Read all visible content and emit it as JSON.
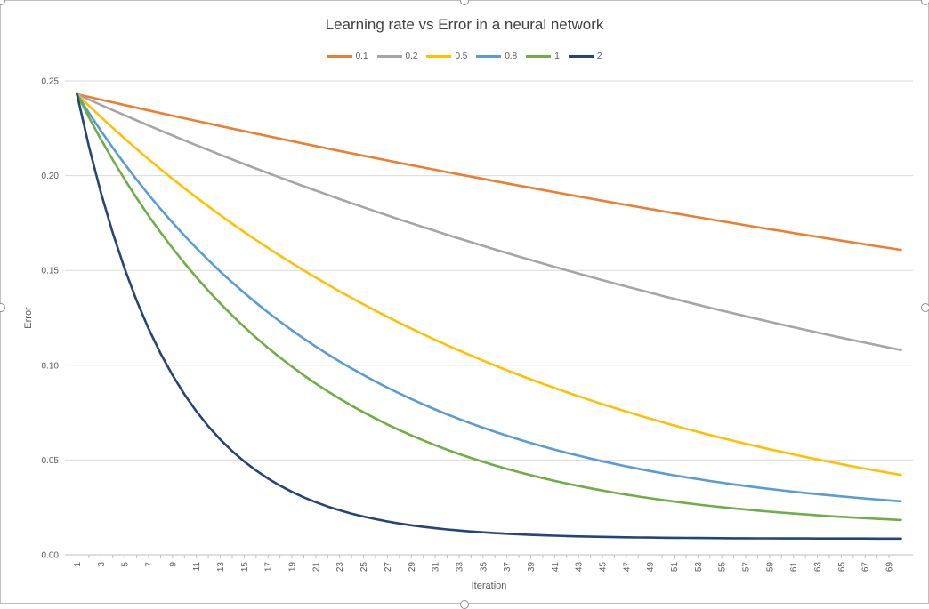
{
  "chart_data": {
    "type": "line",
    "title": "Learning rate vs Error in a neural network",
    "xlabel": "Iteration",
    "ylabel": "Error",
    "x": [
      1,
      3,
      5,
      7,
      9,
      11,
      13,
      15,
      17,
      19,
      21,
      23,
      25,
      27,
      29,
      31,
      33,
      35,
      37,
      39,
      41,
      43,
      45,
      47,
      49,
      51,
      53,
      55,
      57,
      59,
      61,
      63,
      65,
      67,
      69
    ],
    "xlim": [
      1,
      70
    ],
    "ylim": [
      0,
      0.25
    ],
    "yticks": [
      "0.00",
      "0.05",
      "0.10",
      "0.15",
      "0.20",
      "0.25"
    ],
    "ytick_values": [
      0,
      0.05,
      0.1,
      0.15,
      0.2,
      0.25
    ],
    "xtick_labels": [
      "1",
      "3",
      "5",
      "7",
      "9",
      "11",
      "13",
      "15",
      "17",
      "19",
      "21",
      "23",
      "25",
      "27",
      "29",
      "31",
      "33",
      "35",
      "37",
      "39",
      "41",
      "43",
      "45",
      "47",
      "49",
      "51",
      "53",
      "55",
      "57",
      "59",
      "61",
      "63",
      "65",
      "67",
      "69"
    ],
    "grid": "horizontal",
    "legend_position": "top",
    "series": [
      {
        "name": "0.1",
        "color": "#ED7D31",
        "start": 0.243,
        "end": 0.161,
        "rate": 0.00598,
        "floor": 0.0
      },
      {
        "name": "0.2",
        "color": "#A5A5A5",
        "start": 0.243,
        "end": 0.108,
        "rate": 0.01175,
        "floor": 0.0
      },
      {
        "name": "0.5",
        "color": "#FFC000",
        "start": 0.243,
        "end": 0.045,
        "rate": 0.0254,
        "floor": 0.0
      },
      {
        "name": "0.8",
        "color": "#5B9BD5",
        "start": 0.243,
        "end": 0.026,
        "rate": 0.0448,
        "floor": 0.018
      },
      {
        "name": "1",
        "color": "#70AD47",
        "start": 0.243,
        "end": 0.019,
        "rate": 0.0545,
        "floor": 0.013
      },
      {
        "name": "2",
        "color": "#264478",
        "start": 0.243,
        "end": 0.008,
        "rate": 0.125,
        "floor": 0.0085
      }
    ]
  }
}
